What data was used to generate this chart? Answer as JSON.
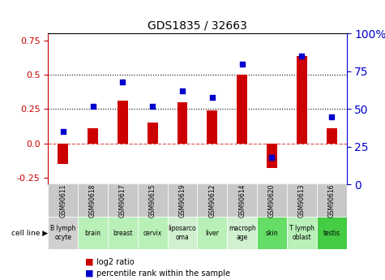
{
  "title": "GDS1835 / 32663",
  "samples": [
    "GSM90611",
    "GSM90618",
    "GSM90617",
    "GSM90615",
    "GSM90619",
    "GSM90612",
    "GSM90614",
    "GSM90620",
    "GSM90613",
    "GSM90616"
  ],
  "cell_lines": [
    "B lymph\nocyte",
    "brain",
    "breast",
    "cervix",
    "liposarco\noma",
    "liver",
    "macroph\nage",
    "skin",
    "T lymph\noblast",
    "testis"
  ],
  "cell_bg_colors": [
    "#d0d0d0",
    "#b8f0b8",
    "#b8f0b8",
    "#b8f0b8",
    "#d0f0d0",
    "#b8f0b8",
    "#d0f0d0",
    "#66dd66",
    "#b8f0b8",
    "#44cc44"
  ],
  "log2_ratio": [
    -0.15,
    0.11,
    0.31,
    0.15,
    0.3,
    0.24,
    0.5,
    -0.18,
    0.635,
    0.11
  ],
  "percentile_rank": [
    35,
    52,
    68,
    52,
    62,
    58,
    80,
    18,
    85,
    45
  ],
  "bar_color": "#cc0000",
  "dot_color": "#0000cc",
  "ylim_left": [
    -0.3,
    0.8
  ],
  "ylim_right": [
    0,
    100
  ],
  "yticks_left": [
    -0.25,
    0.0,
    0.25,
    0.5,
    0.75
  ],
  "yticks_right": [
    0,
    25,
    50,
    75,
    100
  ],
  "hline_y": [
    0.25,
    0.5
  ],
  "zero_line_y": 0.0,
  "xlabel": "",
  "left_ylabel": "",
  "right_ylabel": ""
}
